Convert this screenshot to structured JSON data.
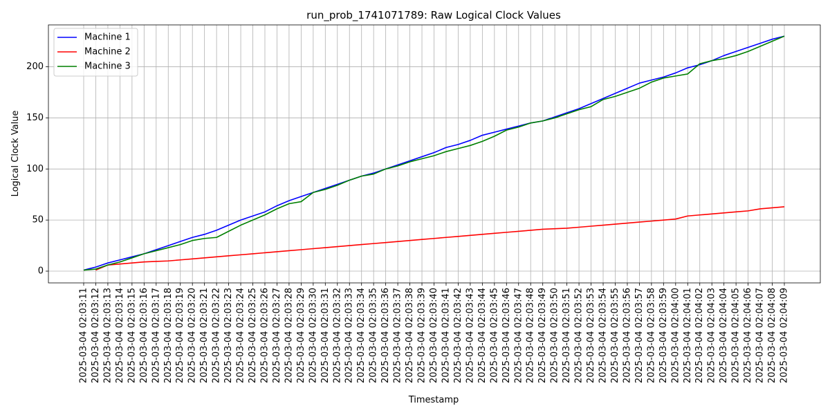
{
  "chart_data": {
    "type": "line",
    "title": "run_prob_1741071789: Raw Logical Clock Values",
    "xlabel": "Timestamp",
    "ylabel": "Logical Clock Value",
    "grid": true,
    "legend_position": "top-left",
    "ylim": [
      -11.5,
      241
    ],
    "yticks": [
      0,
      50,
      100,
      150,
      200
    ],
    "x": [
      "2025-03-04 02:03:11",
      "2025-03-04 02:03:12",
      "2025-03-04 02:03:13",
      "2025-03-04 02:03:14",
      "2025-03-04 02:03:15",
      "2025-03-04 02:03:16",
      "2025-03-04 02:03:17",
      "2025-03-04 02:03:18",
      "2025-03-04 02:03:19",
      "2025-03-04 02:03:20",
      "2025-03-04 02:03:21",
      "2025-03-04 02:03:22",
      "2025-03-04 02:03:23",
      "2025-03-04 02:03:24",
      "2025-03-04 02:03:25",
      "2025-03-04 02:03:26",
      "2025-03-04 02:03:27",
      "2025-03-04 02:03:28",
      "2025-03-04 02:03:29",
      "2025-03-04 02:03:30",
      "2025-03-04 02:03:31",
      "2025-03-04 02:03:32",
      "2025-03-04 02:03:33",
      "2025-03-04 02:03:34",
      "2025-03-04 02:03:35",
      "2025-03-04 02:03:36",
      "2025-03-04 02:03:37",
      "2025-03-04 02:03:38",
      "2025-03-04 02:03:39",
      "2025-03-04 02:03:40",
      "2025-03-04 02:03:41",
      "2025-03-04 02:03:42",
      "2025-03-04 02:03:43",
      "2025-03-04 02:03:44",
      "2025-03-04 02:03:45",
      "2025-03-04 02:03:46",
      "2025-03-04 02:03:47",
      "2025-03-04 02:03:48",
      "2025-03-04 02:03:49",
      "2025-03-04 02:03:50",
      "2025-03-04 02:03:51",
      "2025-03-04 02:03:52",
      "2025-03-04 02:03:53",
      "2025-03-04 02:03:54",
      "2025-03-04 02:03:55",
      "2025-03-04 02:03:56",
      "2025-03-04 02:03:57",
      "2025-03-04 02:03:58",
      "2025-03-04 02:03:59",
      "2025-03-04 02:04:00",
      "2025-03-04 02:04:01",
      "2025-03-04 02:04:02",
      "2025-03-04 02:04:03",
      "2025-03-04 02:04:04",
      "2025-03-04 02:04:05",
      "2025-03-04 02:04:06",
      "2025-03-04 02:04:07",
      "2025-03-04 02:04:08",
      "2025-03-04 02:04:09"
    ],
    "series": [
      {
        "name": "Machine 1",
        "color": "#0000ff",
        "points": [
          [
            "2025-03-04 02:03:11",
            1
          ],
          [
            "2025-03-04 02:03:12",
            4
          ],
          [
            "2025-03-04 02:03:13",
            8
          ],
          [
            "2025-03-04 02:03:14",
            11
          ],
          [
            "2025-03-04 02:03:15",
            14
          ],
          [
            "2025-03-04 02:03:16",
            17
          ],
          [
            "2025-03-04 02:03:17",
            21
          ],
          [
            "2025-03-04 02:03:18",
            25
          ],
          [
            "2025-03-04 02:03:19",
            29
          ],
          [
            "2025-03-04 02:03:20",
            33
          ],
          [
            "2025-03-04 02:03:21",
            36
          ],
          [
            "2025-03-04 02:03:22",
            40
          ],
          [
            "2025-03-04 02:03:23",
            45
          ],
          [
            "2025-03-04 02:03:24",
            50
          ],
          [
            "2025-03-04 02:03:25",
            54
          ],
          [
            "2025-03-04 02:03:26",
            58
          ],
          [
            "2025-03-04 02:03:27",
            64
          ],
          [
            "2025-03-04 02:03:28",
            69
          ],
          [
            "2025-03-04 02:03:29",
            73
          ],
          [
            "2025-03-04 02:03:30",
            77
          ],
          [
            "2025-03-04 02:03:31",
            81
          ],
          [
            "2025-03-04 02:03:32",
            85
          ],
          [
            "2025-03-04 02:03:33",
            89
          ],
          [
            "2025-03-04 02:03:34",
            93
          ],
          [
            "2025-03-04 02:03:35",
            96
          ],
          [
            "2025-03-04 02:03:36",
            100
          ],
          [
            "2025-03-04 02:03:37",
            104
          ],
          [
            "2025-03-04 02:03:38",
            108
          ],
          [
            "2025-03-04 02:03:39",
            112
          ],
          [
            "2025-03-04 02:03:40",
            116
          ],
          [
            "2025-03-04 02:03:41",
            121
          ],
          [
            "2025-03-04 02:03:42",
            124
          ],
          [
            "2025-03-04 02:03:43",
            128
          ],
          [
            "2025-03-04 02:03:44",
            133
          ],
          [
            "2025-03-04 02:03:45",
            136
          ],
          [
            "2025-03-04 02:03:46",
            139
          ],
          [
            "2025-03-04 02:03:47",
            142
          ],
          [
            "2025-03-04 02:03:48",
            145
          ],
          [
            "2025-03-04 02:03:49",
            147
          ],
          [
            "2025-03-04 02:03:50",
            151
          ],
          [
            "2025-03-04 02:03:51",
            155
          ],
          [
            "2025-03-04 02:03:52",
            159
          ],
          [
            "2025-03-04 02:03:53",
            164
          ],
          [
            "2025-03-04 02:03:54",
            169
          ],
          [
            "2025-03-04 02:03:55",
            174
          ],
          [
            "2025-03-04 02:03:56",
            179
          ],
          [
            "2025-03-04 02:03:57",
            184
          ],
          [
            "2025-03-04 02:03:58",
            187
          ],
          [
            "2025-03-04 02:03:59",
            190
          ],
          [
            "2025-03-04 02:04:00",
            194
          ],
          [
            "2025-03-04 02:04:01",
            199
          ],
          [
            "2025-03-04 02:04:02",
            202
          ],
          [
            "2025-03-04 02:04:03",
            206
          ],
          [
            "2025-03-04 02:04:04",
            211
          ],
          [
            "2025-03-04 02:04:05",
            215
          ],
          [
            "2025-03-04 02:04:06",
            219
          ],
          [
            "2025-03-04 02:04:07",
            223
          ],
          [
            "2025-03-04 02:04:08",
            227
          ],
          [
            "2025-03-04 02:04:09",
            230
          ]
        ]
      },
      {
        "name": "Machine 2",
        "color": "#ff0000",
        "points": [
          [
            "2025-03-04 02:03:12",
            1
          ],
          [
            "2025-03-04 02:03:13",
            6
          ],
          [
            "2025-03-04 02:03:14",
            7
          ],
          [
            "2025-03-04 02:03:15",
            8
          ],
          [
            "2025-03-04 02:03:16",
            9
          ],
          [
            "2025-03-04 02:03:17",
            9.5
          ],
          [
            "2025-03-04 02:03:18",
            10
          ],
          [
            "2025-03-04 02:03:19",
            11
          ],
          [
            "2025-03-04 02:03:20",
            12
          ],
          [
            "2025-03-04 02:03:21",
            13
          ],
          [
            "2025-03-04 02:03:22",
            14
          ],
          [
            "2025-03-04 02:03:23",
            15
          ],
          [
            "2025-03-04 02:03:24",
            16
          ],
          [
            "2025-03-04 02:03:25",
            17
          ],
          [
            "2025-03-04 02:03:26",
            18
          ],
          [
            "2025-03-04 02:03:27",
            19
          ],
          [
            "2025-03-04 02:03:28",
            20
          ],
          [
            "2025-03-04 02:03:29",
            21
          ],
          [
            "2025-03-04 02:03:30",
            22
          ],
          [
            "2025-03-04 02:03:31",
            23
          ],
          [
            "2025-03-04 02:03:32",
            24
          ],
          [
            "2025-03-04 02:03:33",
            25
          ],
          [
            "2025-03-04 02:03:34",
            26
          ],
          [
            "2025-03-04 02:03:35",
            27
          ],
          [
            "2025-03-04 02:03:36",
            28
          ],
          [
            "2025-03-04 02:03:37",
            29
          ],
          [
            "2025-03-04 02:03:38",
            30
          ],
          [
            "2025-03-04 02:03:39",
            31
          ],
          [
            "2025-03-04 02:03:40",
            32
          ],
          [
            "2025-03-04 02:03:41",
            33
          ],
          [
            "2025-03-04 02:03:42",
            34
          ],
          [
            "2025-03-04 02:03:43",
            35
          ],
          [
            "2025-03-04 02:03:44",
            36
          ],
          [
            "2025-03-04 02:03:45",
            37
          ],
          [
            "2025-03-04 02:03:46",
            38
          ],
          [
            "2025-03-04 02:03:47",
            39
          ],
          [
            "2025-03-04 02:03:48",
            40
          ],
          [
            "2025-03-04 02:03:49",
            41
          ],
          [
            "2025-03-04 02:03:50",
            41.5
          ],
          [
            "2025-03-04 02:03:51",
            42
          ],
          [
            "2025-03-04 02:03:52",
            43
          ],
          [
            "2025-03-04 02:03:53",
            44
          ],
          [
            "2025-03-04 02:03:54",
            45
          ],
          [
            "2025-03-04 02:03:55",
            46
          ],
          [
            "2025-03-04 02:03:56",
            47
          ],
          [
            "2025-03-04 02:03:57",
            48
          ],
          [
            "2025-03-04 02:03:58",
            49
          ],
          [
            "2025-03-04 02:03:59",
            50
          ],
          [
            "2025-03-04 02:04:00",
            51
          ],
          [
            "2025-03-04 02:04:01",
            54
          ],
          [
            "2025-03-04 02:04:02",
            55
          ],
          [
            "2025-03-04 02:04:03",
            56
          ],
          [
            "2025-03-04 02:04:04",
            57
          ],
          [
            "2025-03-04 02:04:05",
            58
          ],
          [
            "2025-03-04 02:04:06",
            59
          ],
          [
            "2025-03-04 02:04:07",
            61
          ],
          [
            "2025-03-04 02:04:08",
            62
          ],
          [
            "2025-03-04 02:04:09",
            63
          ]
        ]
      },
      {
        "name": "Machine 3",
        "color": "#008000",
        "points": [
          [
            "2025-03-04 02:03:11",
            1
          ],
          [
            "2025-03-04 02:03:12",
            2
          ],
          [
            "2025-03-04 02:03:13",
            6
          ],
          [
            "2025-03-04 02:03:14",
            9
          ],
          [
            "2025-03-04 02:03:15",
            13
          ],
          [
            "2025-03-04 02:03:16",
            17
          ],
          [
            "2025-03-04 02:03:17",
            20
          ],
          [
            "2025-03-04 02:03:18",
            23
          ],
          [
            "2025-03-04 02:03:19",
            26
          ],
          [
            "2025-03-04 02:03:20",
            30
          ],
          [
            "2025-03-04 02:03:21",
            32
          ],
          [
            "2025-03-04 02:03:22",
            33
          ],
          [
            "2025-03-04 02:03:23",
            39
          ],
          [
            "2025-03-04 02:03:24",
            45
          ],
          [
            "2025-03-04 02:03:25",
            50
          ],
          [
            "2025-03-04 02:03:26",
            55
          ],
          [
            "2025-03-04 02:03:27",
            61
          ],
          [
            "2025-03-04 02:03:28",
            66
          ],
          [
            "2025-03-04 02:03:29",
            68
          ],
          [
            "2025-03-04 02:03:30",
            77
          ],
          [
            "2025-03-04 02:03:31",
            80
          ],
          [
            "2025-03-04 02:03:32",
            84
          ],
          [
            "2025-03-04 02:03:33",
            89
          ],
          [
            "2025-03-04 02:03:34",
            93
          ],
          [
            "2025-03-04 02:03:35",
            95
          ],
          [
            "2025-03-04 02:03:36",
            100
          ],
          [
            "2025-03-04 02:03:37",
            103
          ],
          [
            "2025-03-04 02:03:38",
            107
          ],
          [
            "2025-03-04 02:03:39",
            110
          ],
          [
            "2025-03-04 02:03:40",
            113
          ],
          [
            "2025-03-04 02:03:41",
            117
          ],
          [
            "2025-03-04 02:03:42",
            120
          ],
          [
            "2025-03-04 02:03:43",
            123
          ],
          [
            "2025-03-04 02:03:44",
            127
          ],
          [
            "2025-03-04 02:03:45",
            132
          ],
          [
            "2025-03-04 02:03:46",
            138
          ],
          [
            "2025-03-04 02:03:47",
            141
          ],
          [
            "2025-03-04 02:03:48",
            145
          ],
          [
            "2025-03-04 02:03:49",
            147
          ],
          [
            "2025-03-04 02:03:50",
            150
          ],
          [
            "2025-03-04 02:03:51",
            154
          ],
          [
            "2025-03-04 02:03:52",
            158
          ],
          [
            "2025-03-04 02:03:53",
            161
          ],
          [
            "2025-03-04 02:03:54",
            168
          ],
          [
            "2025-03-04 02:03:55",
            171
          ],
          [
            "2025-03-04 02:03:56",
            175
          ],
          [
            "2025-03-04 02:03:57",
            179
          ],
          [
            "2025-03-04 02:03:58",
            185
          ],
          [
            "2025-03-04 02:03:59",
            189
          ],
          [
            "2025-03-04 02:04:00",
            191
          ],
          [
            "2025-03-04 02:04:01",
            193
          ],
          [
            "2025-03-04 02:04:02",
            203
          ],
          [
            "2025-03-04 02:04:03",
            206
          ],
          [
            "2025-03-04 02:04:04",
            208
          ],
          [
            "2025-03-04 02:04:05",
            211
          ],
          [
            "2025-03-04 02:04:06",
            215
          ],
          [
            "2025-03-04 02:04:07",
            220
          ],
          [
            "2025-03-04 02:04:08",
            225
          ],
          [
            "2025-03-04 02:04:09",
            230
          ]
        ]
      }
    ]
  }
}
